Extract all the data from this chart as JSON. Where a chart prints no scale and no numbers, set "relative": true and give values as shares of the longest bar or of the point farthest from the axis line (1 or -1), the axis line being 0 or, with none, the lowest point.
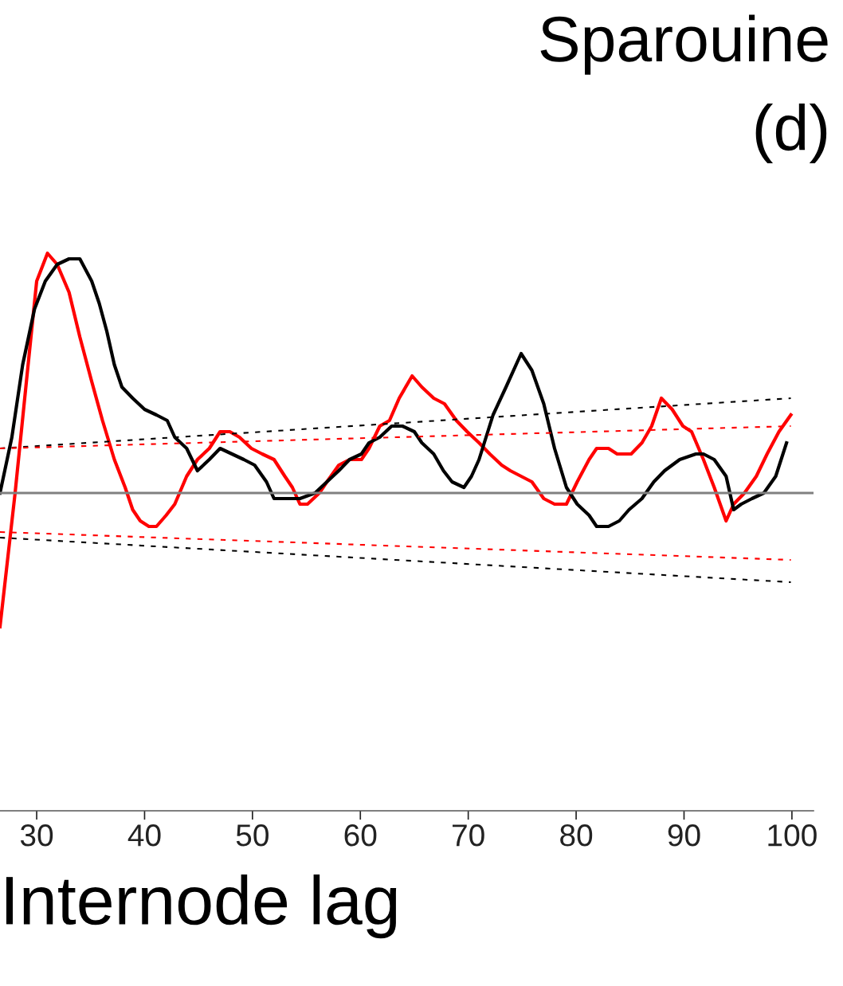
{
  "chart_data": {
    "type": "line",
    "relative": true,
    "title": "Sparouine",
    "subtitle": "(d)",
    "xlabel": "Internode lag",
    "xlim": [
      26.6,
      102
    ],
    "xticks": [
      30,
      40,
      50,
      60,
      70,
      80,
      90,
      100
    ],
    "tick_labels": "x",
    "grid": false,
    "legend": false,
    "marker": "none",
    "ref_lines": [
      {
        "axis": "y",
        "value": 0.57,
        "color": "#808080",
        "line_style": "solid"
      }
    ],
    "series": [
      {
        "color": "#ff0000",
        "line_style": "solid",
        "x": [
          26.6,
          27.3,
          28.0,
          29.1,
          30.0,
          31.0,
          31.9,
          33.0,
          34.0,
          35.1,
          36.1,
          37.2,
          38.2,
          38.9,
          39.6,
          40.4,
          41.1,
          42.0,
          42.8,
          43.9,
          44.9,
          46.0,
          47.0,
          47.9,
          48.8,
          49.9,
          50.9,
          52.0,
          53.0,
          53.7,
          54.4,
          55.1,
          56.2,
          56.9,
          58.0,
          59.0,
          60.1,
          60.8,
          61.8,
          62.7,
          63.6,
          64.8,
          65.7,
          66.8,
          67.8,
          68.9,
          69.9,
          71.0,
          72.0,
          73.1,
          73.9,
          74.9,
          75.9,
          77.0,
          78.0,
          79.1,
          80.1,
          81.2,
          81.9,
          83.0,
          83.8,
          85.1,
          86.1,
          87.0,
          87.9,
          88.9,
          89.9,
          90.7,
          91.8,
          92.8,
          93.9,
          94.6,
          95.6,
          96.7,
          97.7,
          98.8,
          99.9
        ],
        "values": [
          0.33,
          0.45,
          0.57,
          0.78,
          0.95,
          1.0,
          0.98,
          0.93,
          0.85,
          0.77,
          0.7,
          0.63,
          0.58,
          0.54,
          0.52,
          0.51,
          0.51,
          0.53,
          0.55,
          0.6,
          0.63,
          0.65,
          0.68,
          0.68,
          0.67,
          0.65,
          0.64,
          0.63,
          0.6,
          0.58,
          0.55,
          0.55,
          0.57,
          0.59,
          0.62,
          0.63,
          0.63,
          0.65,
          0.69,
          0.7,
          0.74,
          0.78,
          0.76,
          0.74,
          0.73,
          0.7,
          0.68,
          0.66,
          0.64,
          0.62,
          0.61,
          0.6,
          0.59,
          0.56,
          0.55,
          0.55,
          0.59,
          0.63,
          0.65,
          0.65,
          0.64,
          0.64,
          0.66,
          0.69,
          0.74,
          0.72,
          0.69,
          0.68,
          0.63,
          0.58,
          0.52,
          0.55,
          0.57,
          0.6,
          0.64,
          0.68,
          0.71
        ]
      },
      {
        "color": "#000000",
        "line_style": "solid",
        "x": [
          26.6,
          27.7,
          28.7,
          29.8,
          30.8,
          31.9,
          33.0,
          34.0,
          35.1,
          35.8,
          36.5,
          37.2,
          37.9,
          38.9,
          40.0,
          41.1,
          42.1,
          42.8,
          43.9,
          44.9,
          46.0,
          47.0,
          48.1,
          49.2,
          50.2,
          51.3,
          52.0,
          53.0,
          54.4,
          55.8,
          56.9,
          58.0,
          59.0,
          60.1,
          60.8,
          61.8,
          62.9,
          63.9,
          65.0,
          65.7,
          66.8,
          67.7,
          68.5,
          69.6,
          70.3,
          71.0,
          72.3,
          73.5,
          74.9,
          75.9,
          77.0,
          78.0,
          79.1,
          80.1,
          81.2,
          81.9,
          83.0,
          84.0,
          84.9,
          86.1,
          87.2,
          88.2,
          89.6,
          91.1,
          91.8,
          92.8,
          93.9,
          94.6,
          95.3,
          96.3,
          97.4,
          98.5,
          99.5
        ],
        "values": [
          0.57,
          0.67,
          0.8,
          0.9,
          0.95,
          0.98,
          0.99,
          0.99,
          0.95,
          0.91,
          0.86,
          0.8,
          0.76,
          0.74,
          0.72,
          0.71,
          0.7,
          0.67,
          0.65,
          0.61,
          0.63,
          0.65,
          0.64,
          0.63,
          0.62,
          0.59,
          0.56,
          0.56,
          0.56,
          0.57,
          0.59,
          0.61,
          0.63,
          0.64,
          0.66,
          0.67,
          0.69,
          0.69,
          0.68,
          0.66,
          0.64,
          0.61,
          0.59,
          0.58,
          0.6,
          0.63,
          0.71,
          0.76,
          0.82,
          0.79,
          0.73,
          0.65,
          0.58,
          0.55,
          0.53,
          0.51,
          0.51,
          0.52,
          0.54,
          0.56,
          0.59,
          0.61,
          0.63,
          0.64,
          0.64,
          0.63,
          0.6,
          0.54,
          0.55,
          0.56,
          0.57,
          0.6,
          0.66
        ]
      },
      {
        "color": "#000000",
        "line_style": "dashed",
        "x": [
          26.6,
          99.9
        ],
        "values": [
          0.65,
          0.74
        ]
      },
      {
        "color": "#ff0000",
        "line_style": "dashed",
        "x": [
          26.6,
          99.9
        ],
        "values": [
          0.65,
          0.69
        ]
      },
      {
        "color": "#ff0000",
        "line_style": "dashed",
        "x": [
          26.6,
          99.9
        ],
        "values": [
          0.5,
          0.45
        ]
      },
      {
        "color": "#000000",
        "line_style": "dashed",
        "x": [
          26.6,
          99.9
        ],
        "values": [
          0.49,
          0.41
        ]
      }
    ]
  }
}
